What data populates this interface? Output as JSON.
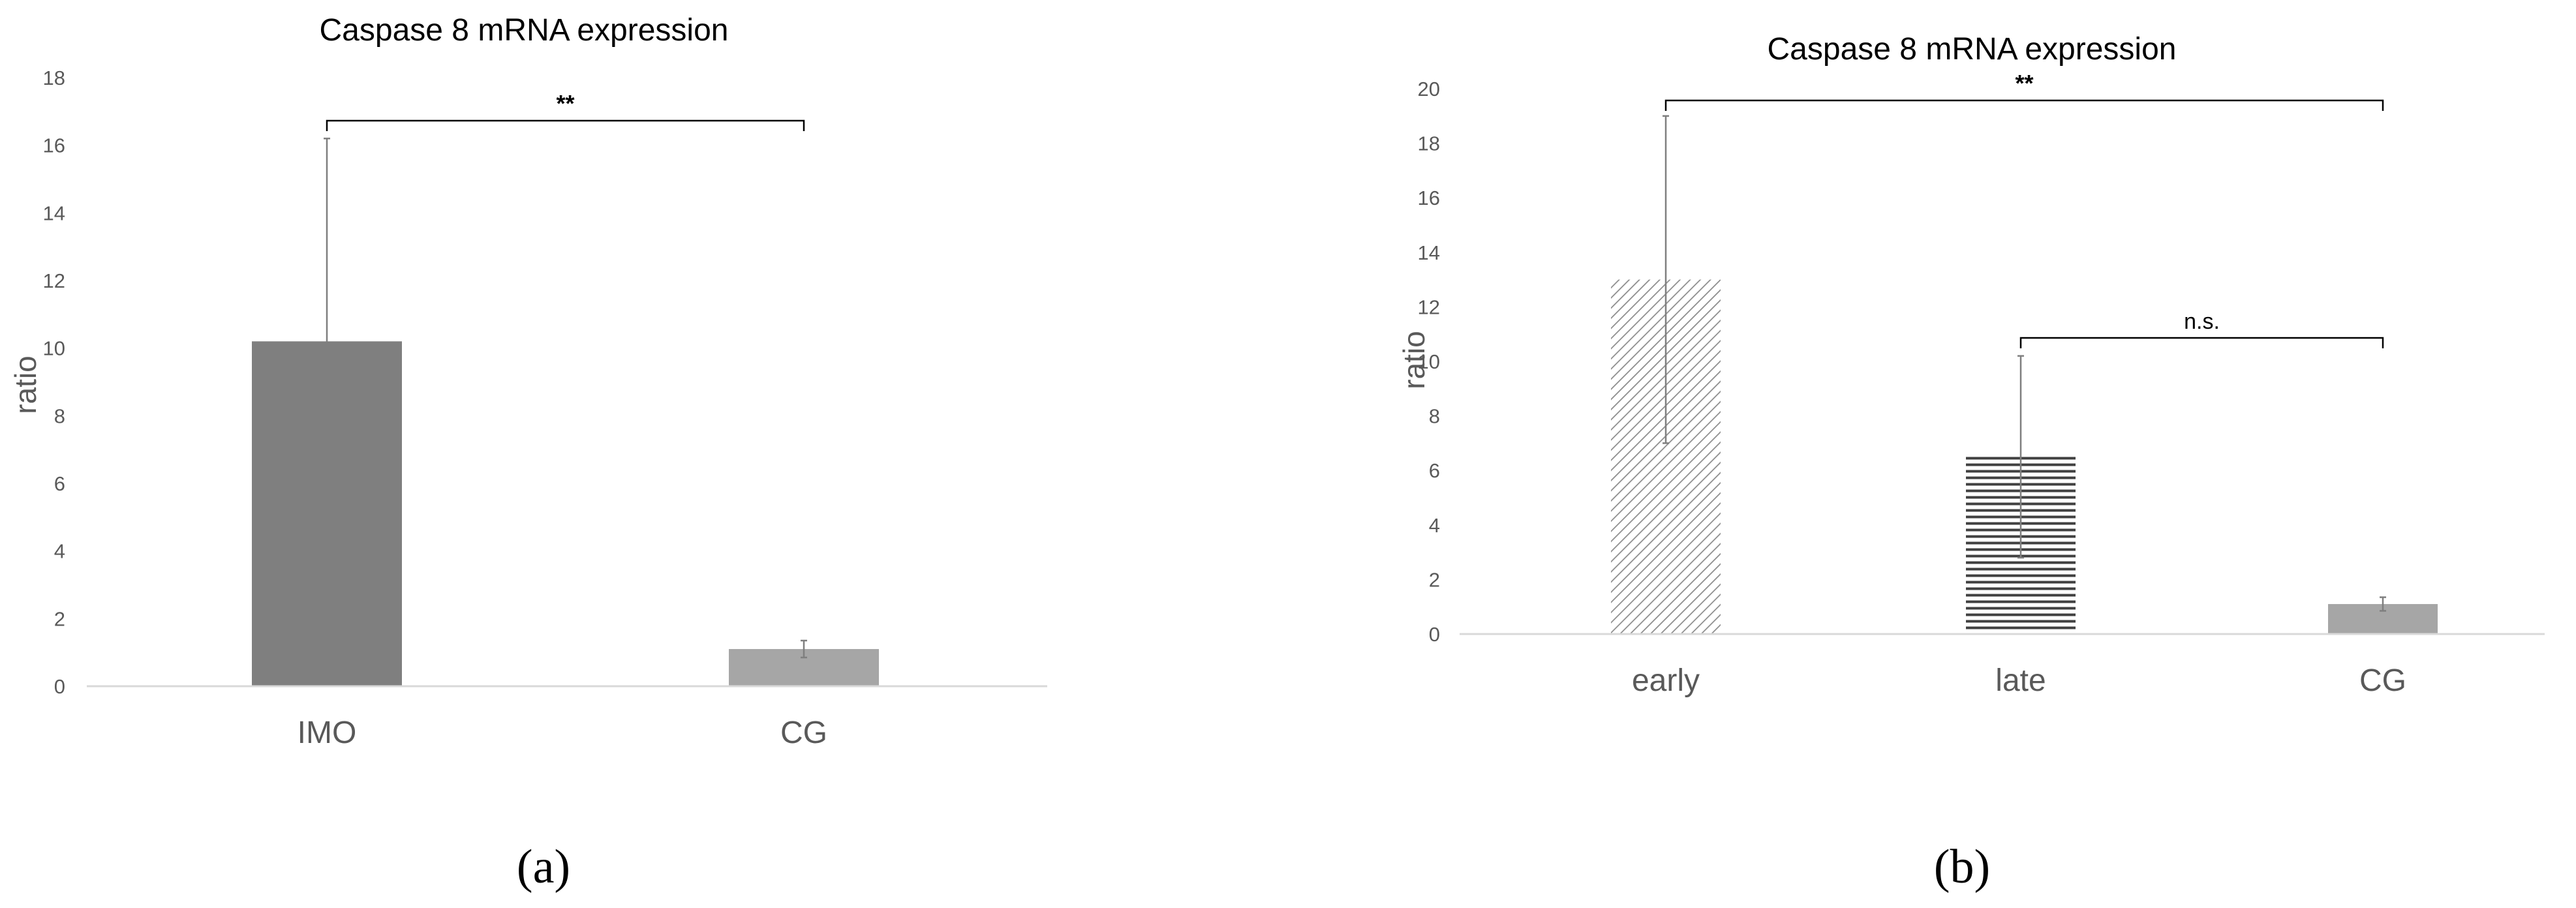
{
  "chart_data": [
    {
      "type": "bar",
      "title": "Caspase 8 mRNA expression",
      "ylabel": "ratio",
      "xlabel": "",
      "ylim": [
        0,
        18
      ],
      "yticks": [
        0,
        2,
        4,
        6,
        8,
        10,
        12,
        14,
        16,
        18
      ],
      "categories": [
        "IMO",
        "CG"
      ],
      "values": [
        10.2,
        1.1
      ],
      "error": [
        6.0,
        0.25
      ],
      "bar_colors": [
        "#7f7f7f",
        "#a6a6a6"
      ],
      "bar_patterns": [
        "solid",
        "solid"
      ],
      "grid": false,
      "significance": [
        {
          "from": 0,
          "to": 1,
          "label": "**"
        }
      ],
      "panel_label": "(a)"
    },
    {
      "type": "bar",
      "title": "Caspase 8 mRNA expression",
      "ylabel": "ratio",
      "xlabel": "",
      "ylim": [
        0,
        20
      ],
      "yticks": [
        0,
        2,
        4,
        6,
        8,
        10,
        12,
        14,
        16,
        18,
        20
      ],
      "categories": [
        "early",
        "late",
        "CG"
      ],
      "values": [
        13.0,
        6.5,
        1.1
      ],
      "error": [
        6.0,
        3.7,
        0.25
      ],
      "bar_colors": [
        "#a6a6a6",
        "#404040",
        "#a6a6a6"
      ],
      "bar_patterns": [
        "diagonal",
        "horizontal",
        "solid"
      ],
      "grid": false,
      "significance": [
        {
          "from": 0,
          "to": 2,
          "label": "**"
        },
        {
          "from": 1,
          "to": 2,
          "label": "n.s."
        }
      ],
      "panel_label": "(b)"
    }
  ]
}
